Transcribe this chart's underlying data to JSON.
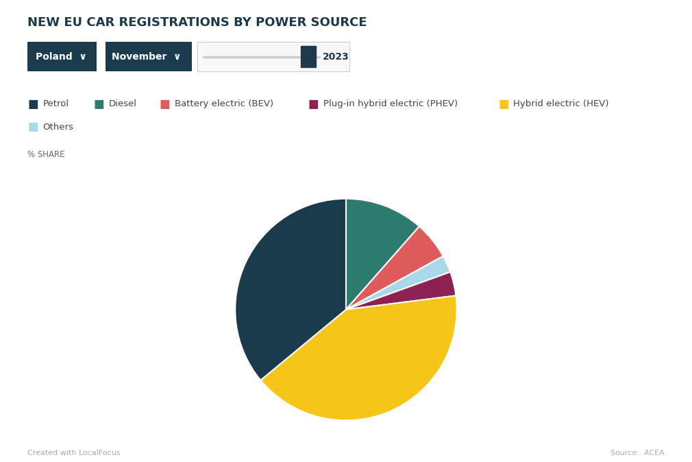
{
  "title": "NEW EU CAR REGISTRATIONS BY POWER SOURCE",
  "title_fontsize": 13,
  "subtitle_share": "% SHARE",
  "categories": [
    "Petrol",
    "Diesel",
    "Battery electric (BEV)",
    "Plug-in hybrid electric (PHEV)",
    "Hybrid electric (HEV)",
    "Others"
  ],
  "colors": [
    "#1b3a4b",
    "#2d7a6e",
    "#e05c5c",
    "#8b2252",
    "#f5c518",
    "#a8d8ea"
  ],
  "background_color": "#ffffff",
  "footer_left": "Created with LocalFocus",
  "footer_right": "Source:  ACEA",
  "wedge_order_labels": [
    "Diesel",
    "Battery electric (BEV)",
    "Others",
    "Plug-in hybrid electric (PHEV)",
    "Hybrid electric (HEV)",
    "Petrol"
  ],
  "wedge_order_values": [
    11.5,
    5.5,
    2.5,
    3.5,
    41.0,
    36.0
  ],
  "wedge_order_colors": [
    "#2d7a6e",
    "#e05c5c",
    "#a8d8ea",
    "#8b2252",
    "#f5c518",
    "#1b3a4b"
  ],
  "startangle": 90
}
